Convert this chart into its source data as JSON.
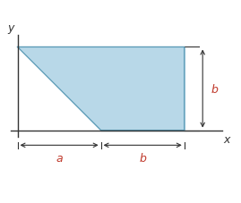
{
  "shape_color": "#b8d8e8",
  "shape_edge_color": "#5a9ab5",
  "label_color": "#c0392b",
  "axis_color": "#333333",
  "dim_color": "#333333",
  "fig_bg": "#ffffff",
  "a_val": 1.0,
  "b_val": 1.0,
  "xlim": [
    -0.18,
    2.65
  ],
  "ylim": [
    -0.52,
    1.22
  ],
  "x_label": "x",
  "y_label": "y",
  "a_label": "a",
  "b_label": "b"
}
